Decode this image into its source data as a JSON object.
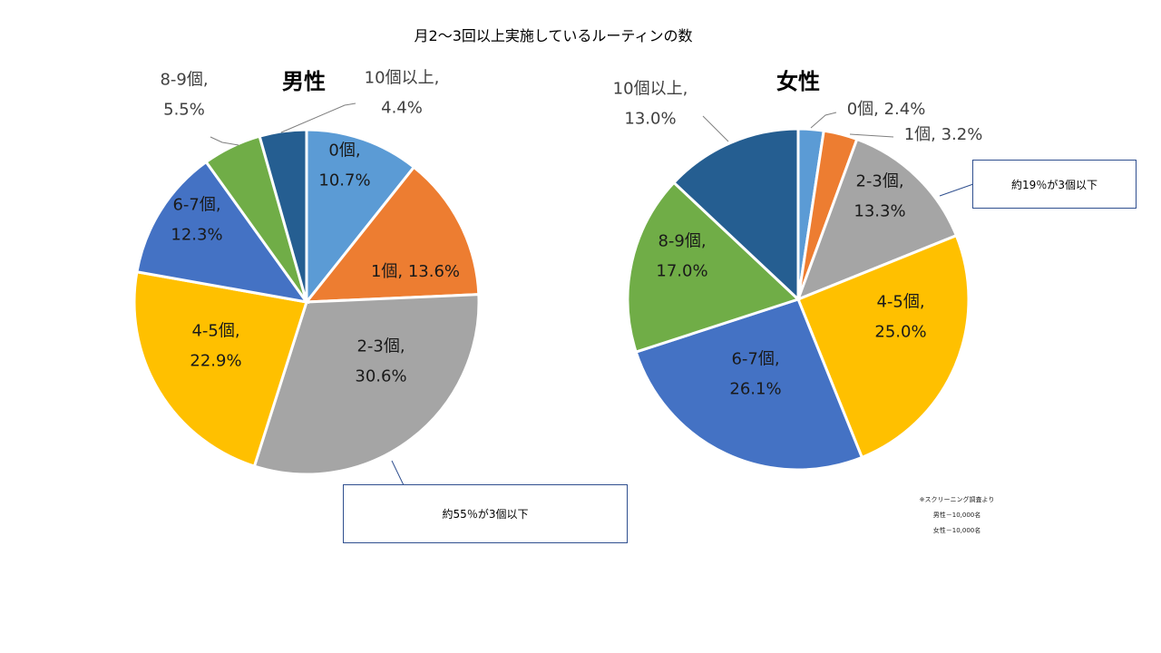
{
  "page_title": "月2〜3回以上実施しているルーティンの数",
  "notes": {
    "source": "※スクリーニング調査より",
    "male_n": "男性－10,000名",
    "female_n": "女性－10,000名"
  },
  "colors": {
    "c0": "#5b9bd5",
    "c1": "#ed7d31",
    "c2": "#a5a5a5",
    "c3": "#ffc000",
    "c4": "#4472c4",
    "c5": "#70ad47",
    "c6": "#255e91"
  },
  "chart_data": [
    {
      "type": "pie",
      "title": "男性",
      "categories": [
        "0個",
        "1個",
        "2-3個",
        "4-5個",
        "6-7個",
        "8-9個",
        "10個以上"
      ],
      "values": [
        10.7,
        13.6,
        30.6,
        22.9,
        12.3,
        5.5,
        4.4
      ],
      "data_labels": [
        [
          "0個,",
          "10.7%"
        ],
        [
          "1個, 13.6%"
        ],
        [
          "2-3個,",
          "30.6%"
        ],
        [
          "4-5個,",
          "22.9%"
        ],
        [
          "6-7個,",
          "12.3%"
        ],
        [
          "8-9個,",
          "5.5%"
        ],
        [
          "10個以上,",
          "4.4%"
        ]
      ],
      "annotation": "約55％が3個以下"
    },
    {
      "type": "pie",
      "title": "女性",
      "categories": [
        "0個",
        "1個",
        "2-3個",
        "4-5個",
        "6-7個",
        "8-9個",
        "10個以上"
      ],
      "values": [
        2.4,
        3.2,
        13.3,
        25.0,
        26.1,
        17.0,
        13.0
      ],
      "data_labels": [
        [
          "0個, 2.4%"
        ],
        [
          "1個, 3.2%"
        ],
        [
          "2-3個,",
          "13.3%"
        ],
        [
          "4-5個,",
          "25.0%"
        ],
        [
          "6-7個,",
          "26.1%"
        ],
        [
          "8-9個,",
          "17.0%"
        ],
        [
          "10個以上,",
          "13.0%"
        ]
      ],
      "annotation": "約19％が3個以下"
    }
  ]
}
